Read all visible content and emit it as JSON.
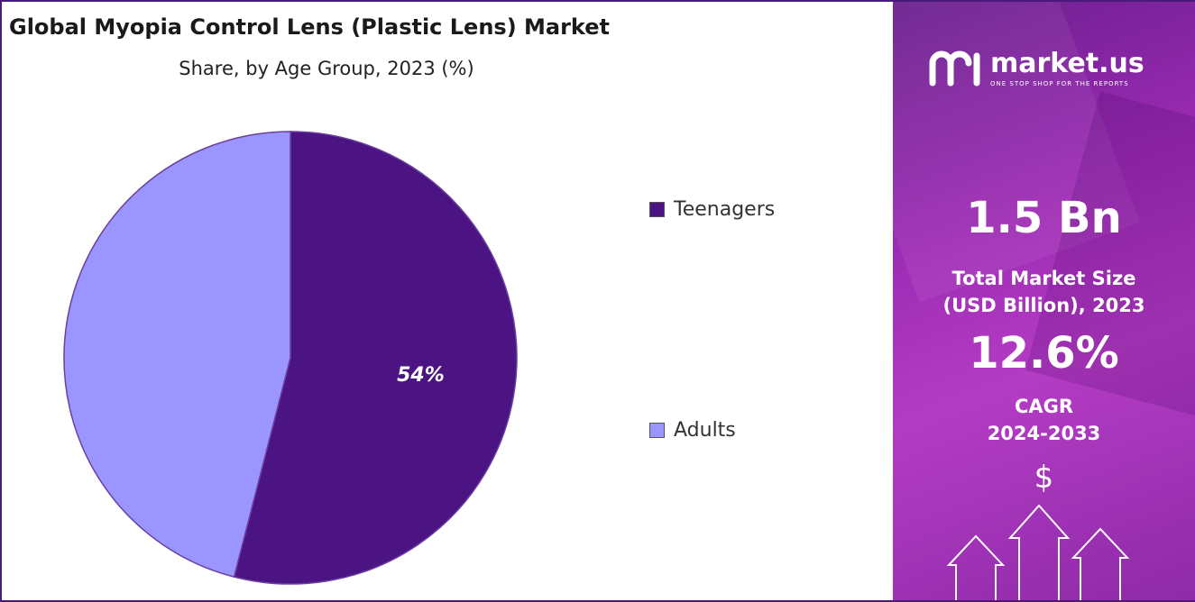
{
  "chart": {
    "title": "Global Myopia Control Lens (Plastic Lens) Market",
    "subtitle": "Share, by Age Group, 2023 (%)"
  },
  "chart_data": {
    "type": "pie",
    "title": "Global Myopia Control Lens (Plastic Lens) Market",
    "subtitle": "Share, by Age Group, 2023 (%)",
    "categories": [
      "Teenagers",
      "Adults"
    ],
    "values": [
      54,
      46
    ],
    "data_labels": [
      "54%",
      ""
    ],
    "colors": [
      "#4b1482",
      "#9b95ff"
    ],
    "legend_position": "right"
  },
  "legend": {
    "items": [
      {
        "label": "Teenagers",
        "color": "#4b1482"
      },
      {
        "label": "Adults",
        "color": "#9b95ff"
      }
    ]
  },
  "sidebar": {
    "brand_name": "market.us",
    "brand_tagline": "ONE STOP SHOP FOR THE REPORTS",
    "market_size_value": "1.5 Bn",
    "market_size_label_1": "Total Market Size",
    "market_size_label_2": "(USD Billion), 2023",
    "cagr_value": "12.6%",
    "cagr_label_1": "CAGR",
    "cagr_label_2": "2024-2033",
    "currency_symbol": "$",
    "panel_color": "#9c2bb3"
  }
}
